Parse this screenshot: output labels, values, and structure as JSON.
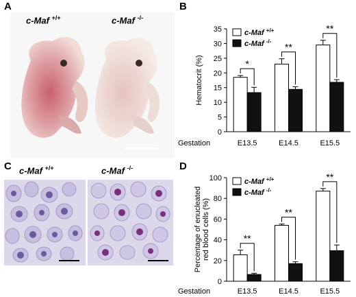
{
  "figure": {
    "panels": [
      {
        "letter": "A",
        "genotype_wt": "c-Maf",
        "wt_superscript": "+/+",
        "genotype_ko": "c-Maf",
        "ko_superscript": "-/-"
      },
      {
        "letter": "B"
      },
      {
        "letter": "C",
        "genotype_wt": "c-Maf",
        "wt_superscript": "+/+",
        "genotype_ko": "c-Maf",
        "ko_superscript": "-/-"
      },
      {
        "letter": "D"
      }
    ],
    "colors": {
      "wt_bar": "#ffffff",
      "ko_bar": "#111111",
      "embryo_bg": "#f7f7f7",
      "blood_bg": "#dcd8ea",
      "cell_purple": "#6b5aa0"
    }
  },
  "chart_data": [
    {
      "type": "bar",
      "panel": "B",
      "row_label": "Gestation",
      "categories": [
        "E13.5",
        "E14.5",
        "E15.5"
      ],
      "ylabel": "Hematocrit (%)",
      "ylim": [
        0,
        35
      ],
      "yticks": [
        "0",
        "5",
        "10",
        "15",
        "20",
        "25",
        "30",
        "35"
      ],
      "legend": [
        {
          "name": "c-Maf",
          "sup": "+/+"
        },
        {
          "name": "c-Maf",
          "sup": "-/-"
        }
      ],
      "series": [
        {
          "values": [
            18.5,
            23.0,
            29.5
          ],
          "errors": [
            0.6,
            1.8,
            1.6
          ]
        },
        {
          "values": [
            13.3,
            14.4,
            16.8
          ],
          "errors": [
            1.8,
            0.9,
            0.9
          ]
        }
      ],
      "significance": [
        "*",
        "**",
        "**"
      ]
    },
    {
      "type": "bar",
      "panel": "D",
      "row_label": "Gestation",
      "categories": [
        "E13.5",
        "E14.5",
        "E15.5"
      ],
      "ylabel_lines": [
        "Percentage of enucleated",
        "red blood cells (%)"
      ],
      "ylim": [
        0,
        100
      ],
      "yticks": [
        "0",
        "20",
        "40",
        "60",
        "80",
        "100"
      ],
      "legend": [
        {
          "name": "c-Maf",
          "sup": "+/+"
        },
        {
          "name": "c-Maf",
          "sup": "-/-"
        }
      ],
      "series": [
        {
          "values": [
            25.5,
            54.0,
            87.0
          ],
          "errors": [
            4.5,
            1.2,
            2.5
          ]
        },
        {
          "values": [
            6.5,
            17.0,
            29.5
          ],
          "errors": [
            1.2,
            1.8,
            5.5
          ]
        }
      ],
      "significance": [
        "**",
        "**",
        "**"
      ]
    }
  ]
}
